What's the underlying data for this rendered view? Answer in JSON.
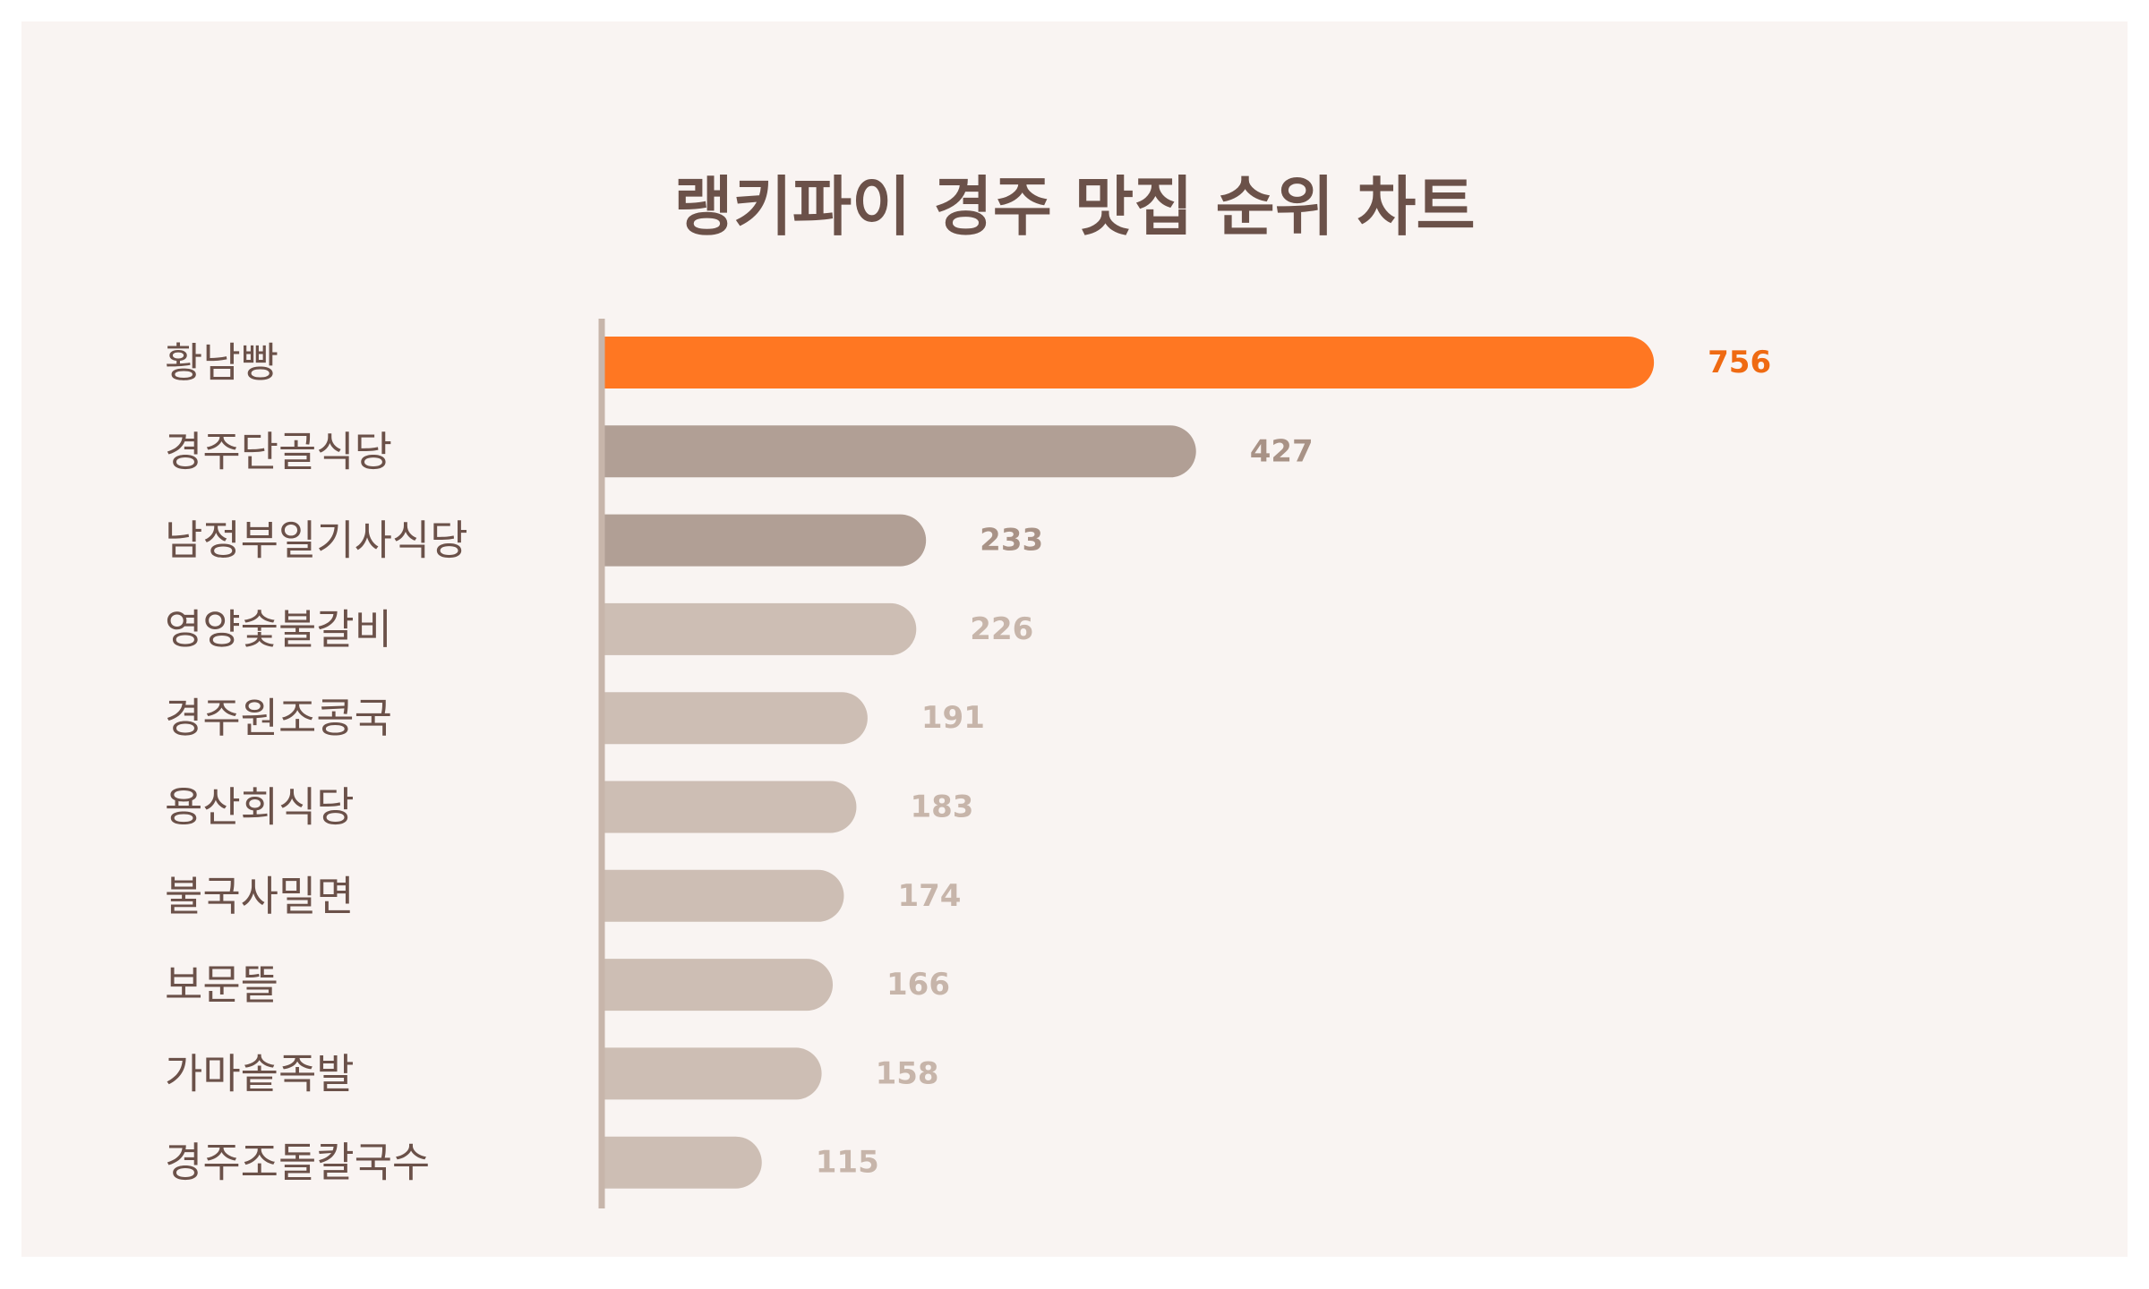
{
  "chart_data": {
    "type": "bar",
    "orientation": "horizontal",
    "title": "랭키파이 경주 맛집 순위 차트",
    "categories": [
      "황남빵",
      "경주단골식당",
      "남정부일기사식당",
      "영양숯불갈비",
      "경주원조콩국",
      "용산회식당",
      "불국사밀면",
      "보문뜰",
      "가마솥족발",
      "경주조돌칼국수"
    ],
    "values": [
      756,
      427,
      233,
      226,
      191,
      183,
      174,
      166,
      158,
      115
    ],
    "xlim": [
      0,
      760
    ],
    "grid": false,
    "legend": "none",
    "bar_colors": [
      "#ff7722",
      "#b19f95",
      "#b19f95",
      "#cdbeb4",
      "#cdbeb4",
      "#cdbeb4",
      "#cdbeb4",
      "#cdbeb4",
      "#cdbeb4",
      "#cdbeb4"
    ],
    "value_label_colors": [
      "#ef6a12",
      "#a89286",
      "#a89286",
      "#c7b5aa",
      "#c7b5aa",
      "#c7b5aa",
      "#c7b5aa",
      "#c7b5aa",
      "#c7b5aa",
      "#c7b5aa"
    ],
    "axis_color": "#c7b5aa"
  }
}
